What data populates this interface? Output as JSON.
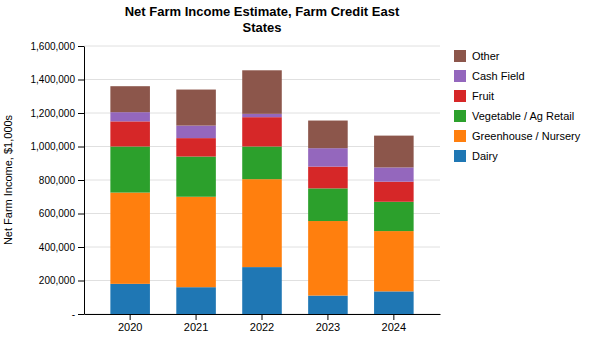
{
  "chart_data": {
    "type": "bar",
    "stacked": true,
    "title": "Net Farm Income Estimate, Farm Credit East\nStates",
    "ylabel": "Net Farm Income, $1,000s",
    "categories": [
      "2020",
      "2021",
      "2022",
      "2023",
      "2024"
    ],
    "series": [
      {
        "name": "Dairy",
        "values": [
          180000,
          160000,
          280000,
          110000,
          135000
        ]
      },
      {
        "name": "Greenhouse / Nursery",
        "values": [
          545000,
          540000,
          525000,
          445000,
          360000
        ]
      },
      {
        "name": "Vegetable / Ag Retail",
        "values": [
          275000,
          240000,
          195000,
          195000,
          175000
        ]
      },
      {
        "name": "Fruit",
        "values": [
          150000,
          110000,
          175000,
          130000,
          120000
        ]
      },
      {
        "name": "Cash Field",
        "values": [
          55000,
          75000,
          20000,
          110000,
          85000
        ]
      },
      {
        "name": "Other",
        "values": [
          155000,
          215000,
          260000,
          165000,
          190000
        ]
      }
    ],
    "ylim": [
      0,
      1600000
    ],
    "yticks": [
      {
        "value": 0,
        "label": "-"
      },
      {
        "value": 200000,
        "label": "200,000"
      },
      {
        "value": 400000,
        "label": "400,000"
      },
      {
        "value": 600000,
        "label": "600,000"
      },
      {
        "value": 800000,
        "label": "800,000"
      },
      {
        "value": 1000000,
        "label": "1,000,000"
      },
      {
        "value": 1200000,
        "label": "1,200,000"
      },
      {
        "value": 1400000,
        "label": "1,400,000"
      },
      {
        "value": 1600000,
        "label": "1,600,000"
      }
    ],
    "grid": true,
    "legend": "right"
  }
}
